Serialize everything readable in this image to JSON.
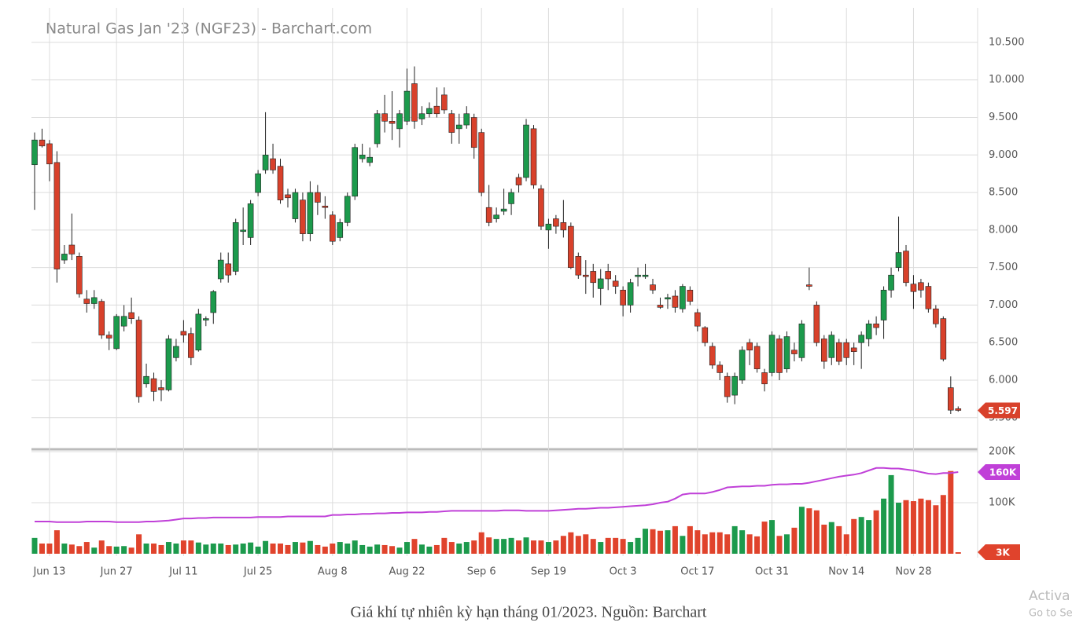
{
  "chart_data": [
    {
      "type": "candlestick",
      "title": "Natural Gas Jan '23 (NGF23) - Barchart.com",
      "up_color": "#1c9a4c",
      "down_color": "#d8412b",
      "grid": true,
      "ylim": [
        5.1,
        10.96
      ],
      "yticks": [
        {
          "value": 5.5,
          "label": "5.500"
        },
        {
          "value": 6,
          "label": "6.000"
        },
        {
          "value": 6.5,
          "label": "6.500"
        },
        {
          "value": 7,
          "label": "7.000"
        },
        {
          "value": 7.5,
          "label": "7.500"
        },
        {
          "value": 8,
          "label": "8.000"
        },
        {
          "value": 8.5,
          "label": "8.500"
        },
        {
          "value": 9,
          "label": "9.000"
        },
        {
          "value": 9.5,
          "label": "9.500"
        },
        {
          "value": 10,
          "label": "10.000"
        },
        {
          "value": 10.5,
          "label": "10.500"
        }
      ],
      "categories": [
        null,
        null,
        "Jun 13",
        null,
        null,
        null,
        null,
        null,
        null,
        null,
        null,
        "Jun 27",
        null,
        null,
        null,
        null,
        null,
        null,
        null,
        null,
        "Jul 11",
        null,
        null,
        null,
        null,
        null,
        null,
        null,
        null,
        null,
        "Jul 25",
        null,
        null,
        null,
        null,
        null,
        null,
        null,
        null,
        null,
        "Aug 8",
        null,
        null,
        null,
        null,
        null,
        null,
        null,
        null,
        null,
        "Aug 22",
        null,
        null,
        null,
        null,
        null,
        null,
        null,
        null,
        null,
        "Sep 6",
        null,
        null,
        null,
        null,
        null,
        null,
        null,
        null,
        "Sep 19",
        null,
        null,
        null,
        null,
        null,
        null,
        null,
        null,
        null,
        "Oct 3",
        null,
        null,
        null,
        null,
        null,
        null,
        null,
        null,
        null,
        "Oct 17",
        null,
        null,
        null,
        null,
        null,
        null,
        null,
        null,
        null,
        "Oct 31",
        null,
        null,
        null,
        null,
        null,
        null,
        null,
        null,
        null,
        "Nov 14",
        null,
        null,
        null,
        null,
        null,
        null,
        null,
        null,
        "Nov 28",
        null,
        null,
        null,
        null,
        null,
        null
      ],
      "open": [
        8.87,
        9.2,
        9.15,
        8.9,
        7.6,
        7.8,
        7.65,
        7.08,
        7.02,
        7.05,
        6.6,
        6.42,
        6.72,
        6.9,
        6.8,
        5.95,
        6.02,
        5.9,
        5.87,
        6.3,
        6.65,
        6.62,
        6.4,
        6.8,
        6.9,
        7.35,
        7.55,
        7.45,
        7.98,
        7.9,
        8.5,
        8.8,
        8.95,
        8.85,
        8.47,
        8.15,
        8.4,
        7.95,
        8.5,
        8.32,
        8.2,
        7.9,
        8.1,
        8.45,
        8.95,
        8.9,
        9.15,
        9.55,
        9.45,
        9.35,
        9.45,
        9.95,
        9.48,
        9.55,
        9.65,
        9.8,
        9.55,
        9.35,
        9.4,
        9.5,
        9.3,
        8.3,
        8.15,
        8.25,
        8.35,
        8.7,
        8.7,
        9.35,
        8.55,
        8.0,
        8.15,
        8.1,
        8.05,
        7.65,
        7.4,
        7.45,
        7.22,
        7.45,
        7.32,
        7.2,
        7.0,
        7.38,
        7.38,
        7.27,
        7.0,
        7.08,
        7.12,
        6.95,
        7.2,
        6.9,
        6.7,
        6.45,
        6.2,
        6.05,
        5.8,
        6.0,
        6.5,
        6.45,
        6.1,
        6.1,
        6.55,
        6.15,
        6.4,
        6.3,
        7.27,
        7.0,
        6.55,
        6.3,
        6.5,
        6.5,
        6.43,
        6.5,
        6.55,
        6.75,
        6.8,
        7.2,
        7.5,
        7.72,
        7.28,
        7.3,
        7.25,
        6.95,
        6.82,
        5.9,
        5.62
      ],
      "high": [
        9.3,
        9.35,
        9.2,
        9.05,
        7.8,
        8.22,
        7.7,
        7.2,
        7.2,
        7.08,
        6.65,
        6.88,
        7.0,
        7.1,
        6.85,
        6.22,
        6.1,
        6.0,
        6.6,
        6.55,
        6.8,
        6.7,
        6.95,
        6.85,
        7.2,
        7.7,
        7.7,
        8.15,
        8.3,
        8.4,
        8.8,
        9.57,
        9.15,
        8.95,
        8.55,
        8.55,
        8.5,
        8.65,
        8.6,
        8.45,
        8.25,
        8.15,
        8.5,
        9.15,
        9.15,
        9.1,
        9.6,
        9.8,
        9.85,
        9.6,
        10.15,
        10.18,
        9.65,
        9.7,
        9.9,
        9.9,
        9.6,
        9.55,
        9.65,
        9.55,
        9.35,
        8.6,
        8.3,
        8.55,
        8.55,
        8.75,
        9.48,
        9.4,
        8.6,
        8.15,
        8.2,
        8.4,
        8.1,
        7.7,
        7.6,
        7.55,
        7.48,
        7.55,
        7.4,
        7.25,
        7.35,
        7.5,
        7.55,
        7.35,
        7.1,
        7.15,
        7.2,
        7.28,
        7.25,
        6.95,
        6.72,
        6.5,
        6.25,
        6.1,
        6.1,
        6.45,
        6.55,
        6.5,
        6.15,
        6.65,
        6.6,
        6.65,
        6.5,
        6.8,
        7.5,
        7.05,
        6.6,
        6.65,
        6.55,
        6.55,
        6.5,
        6.65,
        6.8,
        6.85,
        7.25,
        7.5,
        8.18,
        7.8,
        7.4,
        7.35,
        7.3,
        7.0,
        6.85,
        6.05,
        5.65
      ],
      "low": [
        8.27,
        9.1,
        8.65,
        7.3,
        7.55,
        7.6,
        7.1,
        6.9,
        6.95,
        6.55,
        6.4,
        6.4,
        6.65,
        6.75,
        5.7,
        5.9,
        5.72,
        5.72,
        5.85,
        6.25,
        6.5,
        6.2,
        6.38,
        6.72,
        6.75,
        7.3,
        7.3,
        7.4,
        7.8,
        7.8,
        8.45,
        8.75,
        8.75,
        8.35,
        8.3,
        8.1,
        7.85,
        7.85,
        8.2,
        8.15,
        7.8,
        7.85,
        8.05,
        8.4,
        8.9,
        8.85,
        9.1,
        9.3,
        9.2,
        9.1,
        9.4,
        9.35,
        9.4,
        9.5,
        9.5,
        9.55,
        9.15,
        9.15,
        9.35,
        8.95,
        8.45,
        8.05,
        8.1,
        8.2,
        8.2,
        8.5,
        8.65,
        8.55,
        8.0,
        7.75,
        7.95,
        7.9,
        7.48,
        7.35,
        7.15,
        7.1,
        7.0,
        7.2,
        7.15,
        6.85,
        6.9,
        7.25,
        7.35,
        7.15,
        6.95,
        6.95,
        6.9,
        6.9,
        7.0,
        6.65,
        6.45,
        6.15,
        6.0,
        5.7,
        5.68,
        5.95,
        6.2,
        6.1,
        5.85,
        6.05,
        6.0,
        6.1,
        6.25,
        6.25,
        7.2,
        6.45,
        6.15,
        6.2,
        6.2,
        6.2,
        6.2,
        6.15,
        6.45,
        6.6,
        6.55,
        7.1,
        7.45,
        7.25,
        6.95,
        7.1,
        6.9,
        6.7,
        6.25,
        5.55,
        5.58
      ],
      "close": [
        9.2,
        9.12,
        8.88,
        7.48,
        7.68,
        7.68,
        7.15,
        7.02,
        7.1,
        6.6,
        6.56,
        6.85,
        6.85,
        6.82,
        5.78,
        6.05,
        5.85,
        5.87,
        6.55,
        6.45,
        6.6,
        6.3,
        6.88,
        6.82,
        7.18,
        7.6,
        7.4,
        8.1,
        8.0,
        8.35,
        8.75,
        9.0,
        8.8,
        8.4,
        8.43,
        8.5,
        7.95,
        8.5,
        8.37,
        8.3,
        7.85,
        8.1,
        8.45,
        9.1,
        9.0,
        8.97,
        9.55,
        9.45,
        9.42,
        9.55,
        9.85,
        9.45,
        9.55,
        9.62,
        9.55,
        9.6,
        9.3,
        9.4,
        9.55,
        9.1,
        8.5,
        8.1,
        8.2,
        8.28,
        8.5,
        8.6,
        9.4,
        8.6,
        8.05,
        8.08,
        8.05,
        8.0,
        7.5,
        7.4,
        7.38,
        7.3,
        7.35,
        7.35,
        7.25,
        7.0,
        7.3,
        7.4,
        7.4,
        7.2,
        6.97,
        7.1,
        6.97,
        7.25,
        7.05,
        6.72,
        6.5,
        6.2,
        6.1,
        5.78,
        6.05,
        6.4,
        6.4,
        6.15,
        5.95,
        6.6,
        6.1,
        6.58,
        6.35,
        6.75,
        7.25,
        6.5,
        6.25,
        6.6,
        6.25,
        6.3,
        6.38,
        6.6,
        6.75,
        6.7,
        7.2,
        7.4,
        7.7,
        7.3,
        7.18,
        7.2,
        6.95,
        6.75,
        6.28,
        5.6,
        5.597
      ]
    },
    {
      "type": "bar",
      "color_up": "#1c9a4c",
      "color_down": "#e0432c",
      "average_color": "#c040d8",
      "ylim": [
        0,
        200000
      ],
      "yticks": [
        {
          "value": 100000,
          "label": "100K"
        },
        {
          "value": 200000,
          "label": "200K"
        }
      ],
      "values": [
        31000,
        20000,
        20000,
        46000,
        20000,
        18000,
        15000,
        23000,
        12000,
        26000,
        15000,
        14000,
        15000,
        12000,
        38000,
        20000,
        20000,
        17000,
        23000,
        20000,
        26000,
        26000,
        22000,
        18000,
        20000,
        20000,
        17000,
        18000,
        20000,
        22000,
        14000,
        25000,
        20000,
        20000,
        17000,
        23000,
        22000,
        25000,
        17000,
        14000,
        20000,
        23000,
        20000,
        26000,
        17000,
        14000,
        18000,
        17000,
        15000,
        12000,
        23000,
        29000,
        18000,
        14000,
        17000,
        31000,
        23000,
        20000,
        23000,
        26000,
        42000,
        32000,
        29000,
        29000,
        31000,
        26000,
        32000,
        26000,
        26000,
        23000,
        26000,
        35000,
        42000,
        35000,
        38000,
        29000,
        23000,
        31000,
        31000,
        29000,
        23000,
        31000,
        49000,
        48000,
        45000,
        46000,
        54000,
        35000,
        54000,
        46000,
        38000,
        42000,
        42000,
        38000,
        54000,
        46000,
        38000,
        34000,
        63000,
        66000,
        35000,
        38000,
        51000,
        92000,
        89000,
        85000,
        57000,
        62000,
        54000,
        38000,
        68000,
        72000,
        66000,
        85000,
        108000,
        154000,
        100000,
        105000,
        103000,
        108000,
        105000,
        95000,
        115000,
        162000,
        3000
      ],
      "current_label": "3K",
      "average": [
        63000,
        63000,
        63000,
        62000,
        62000,
        62000,
        62000,
        63000,
        63000,
        63000,
        63000,
        62000,
        62000,
        62000,
        62000,
        63000,
        63000,
        64000,
        65000,
        67000,
        69000,
        69000,
        70000,
        70000,
        71000,
        71000,
        71000,
        71000,
        71000,
        71000,
        72000,
        72000,
        72000,
        72000,
        73000,
        73000,
        73000,
        73000,
        73000,
        73000,
        76000,
        76000,
        77000,
        77000,
        78000,
        78000,
        79000,
        79000,
        80000,
        80000,
        81000,
        81000,
        81000,
        82000,
        82000,
        83000,
        84000,
        84000,
        84000,
        84000,
        84000,
        84000,
        84000,
        85000,
        85000,
        85000,
        84000,
        84000,
        84000,
        84000,
        85000,
        86000,
        87000,
        88000,
        88000,
        89000,
        90000,
        90000,
        91000,
        92000,
        93000,
        94000,
        95000,
        97000,
        100000,
        102000,
        108000,
        116000,
        118000,
        118000,
        118000,
        121000,
        125000,
        130000,
        131000,
        132000,
        132000,
        133000,
        133000,
        135000,
        136000,
        136000,
        137000,
        137000,
        139000,
        142000,
        145000,
        148000,
        151000,
        153000,
        155000,
        158000,
        163000,
        168000,
        168000,
        167000,
        167000,
        165000,
        163000,
        160000,
        157000,
        156000,
        158000,
        158000,
        160000
      ],
      "average_label": "160K"
    }
  ],
  "caption": "Giá khí tự nhiên kỳ hạn tháng 01/2023. Nguồn: Barchart",
  "watermark": [
    "Activa",
    "Go to Se"
  ]
}
